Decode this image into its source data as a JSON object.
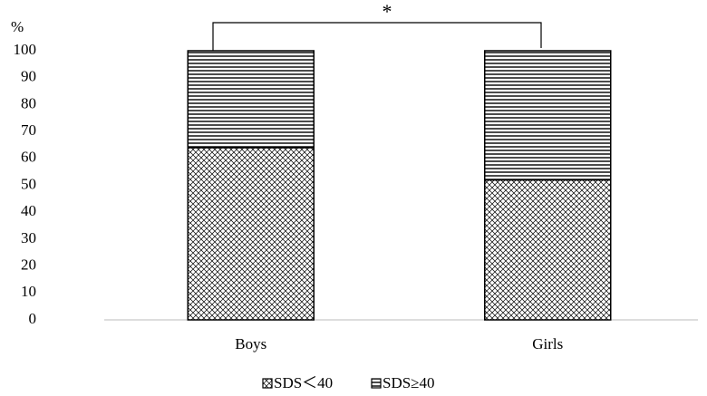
{
  "chart_data": {
    "type": "stacked-bar",
    "y_label": "%",
    "annotation": "*",
    "categories": [
      "Boys",
      "Girls"
    ],
    "series": [
      {
        "name": "SDS＜40",
        "color": "#000000",
        "pattern": "crosshatch",
        "values": [
          64,
          52
        ]
      },
      {
        "name": "SDS≥40",
        "color": "#000000",
        "pattern": "horizontal",
        "values": [
          36,
          48
        ]
      }
    ],
    "ylim": [
      0,
      100
    ],
    "yticks": [
      0,
      10,
      20,
      30,
      40,
      50,
      60,
      70,
      80,
      90,
      100
    ],
    "grid": false
  }
}
